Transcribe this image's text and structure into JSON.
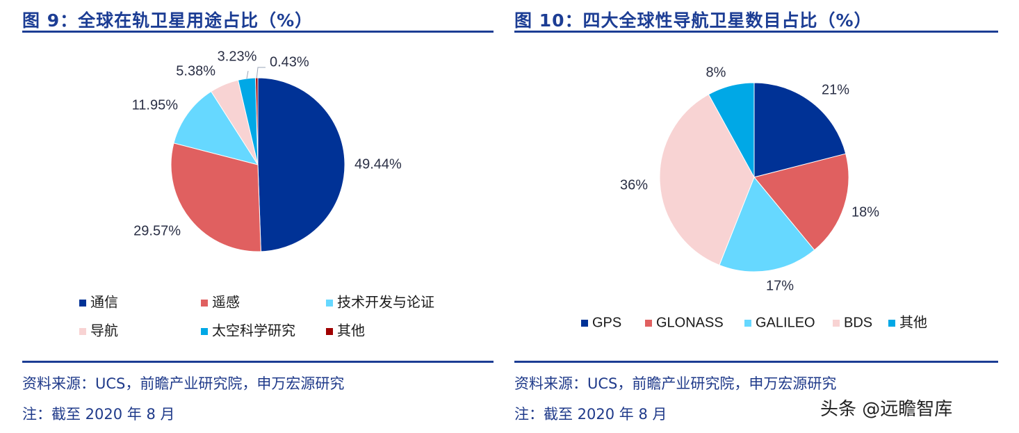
{
  "left": {
    "title": "图 9：全球在轨卫星用途占比（%）",
    "source": "资料来源：UCS，前瞻产业研究院，申万宏源研究",
    "note": "注：截至 2020 年 8 月"
  },
  "right": {
    "title": "图 10：四大全球性导航卫星数目占比（%）",
    "source": "资料来源：UCS，前瞻产业研究院，申万宏源研究",
    "note": "注：截至 2020 年 8 月"
  },
  "watermark": "头条 @远瞻智库",
  "colors": {
    "navy": "#003296",
    "red": "#e06060",
    "cyan": "#66d8ff",
    "pink": "#f8d3d3",
    "blue": "#00a8e6",
    "darkred": "#a00000"
  },
  "chart_data": [
    {
      "type": "pie",
      "title": "",
      "categories": [
        "通信",
        "遥感",
        "技术开发与论证",
        "导航",
        "太空科学研究",
        "其他"
      ],
      "values": [
        49.44,
        29.57,
        11.95,
        5.38,
        3.23,
        0.43
      ],
      "labels": [
        "49.44%",
        "29.57%",
        "11.95%",
        "5.38%",
        "3.23%",
        "0.43%"
      ],
      "colors": [
        "#003296",
        "#e06060",
        "#66d8ff",
        "#f8d3d3",
        "#00a8e6",
        "#a00000"
      ],
      "legend": "bottom"
    },
    {
      "type": "pie",
      "title": "",
      "categories": [
        "GPS",
        "GLONASS",
        "GALILEO",
        "BDS",
        "其他"
      ],
      "values": [
        21,
        18,
        17,
        36,
        8
      ],
      "labels": [
        "21%",
        "18%",
        "17%",
        "36%",
        "8%"
      ],
      "colors": [
        "#003296",
        "#e06060",
        "#66d8ff",
        "#f8d3d3",
        "#00a8e6"
      ],
      "legend": "bottom"
    }
  ]
}
